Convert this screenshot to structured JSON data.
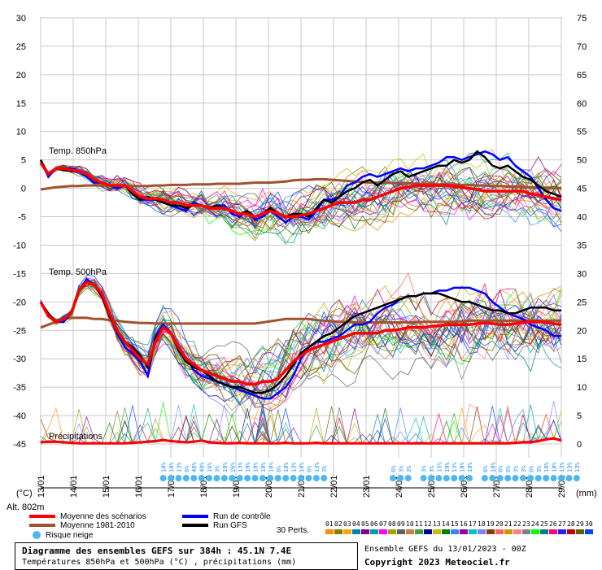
{
  "chart_data": {
    "type": "line",
    "x_dates": [
      "13/01",
      "14/01",
      "15/01",
      "16/01",
      "17/01",
      "18/01",
      "19/01",
      "20/01",
      "21/01",
      "22/01",
      "23/01",
      "24/01",
      "25/01",
      "26/01",
      "27/01",
      "28/01",
      "29/01"
    ],
    "x_step_hours": 6,
    "left_axis": {
      "unit_label": "(°C)",
      "ticks": [
        30,
        25,
        20,
        15,
        10,
        5,
        0,
        -5,
        -10,
        -15,
        -20,
        -25,
        -30,
        -35,
        -40,
        -45
      ],
      "range": [
        -45,
        30
      ]
    },
    "right_axis": {
      "unit_label": "(mm)",
      "ticks": [
        75,
        70,
        65,
        60,
        55,
        50,
        45,
        40,
        35,
        30,
        25,
        20,
        15,
        10,
        5,
        0
      ],
      "range": [
        0,
        75
      ]
    },
    "panels": {
      "t850": {
        "label": "Temp. 850hPa"
      },
      "t500": {
        "label": "Temp. 500hPa"
      },
      "precip": {
        "label": "Précipitations"
      }
    },
    "series": {
      "t850_mean": {
        "name": "Moyenne des scénarios",
        "color": "#ff0000",
        "values": [
          4.5,
          2.5,
          3.5,
          3.5,
          3.2,
          3.0,
          2.5,
          1.5,
          1.0,
          0.5,
          0.5,
          0.5,
          -0.5,
          -1.5,
          -1.8,
          -1.8,
          -2.0,
          -2.5,
          -2.5,
          -3.0,
          -3.0,
          -3.0,
          -3.5,
          -3.5,
          -3.5,
          -4.0,
          -4.5,
          -4.5,
          -5.0,
          -4.5,
          -4.0,
          -4.5,
          -5.0,
          -5.0,
          -4.8,
          -4.5,
          -4.0,
          -3.5,
          -3.0,
          -2.5,
          -2.5,
          -2.5,
          -2.0,
          -2.0,
          -1.5,
          -1.0,
          -0.5,
          0.0,
          0.2,
          0.5,
          0.5,
          0.5,
          0.5,
          0.5,
          0.3,
          0.2,
          0.0,
          -0.2,
          -0.5,
          -0.5,
          -0.5,
          -0.5,
          -0.5,
          -0.5,
          -1.0,
          -1.2,
          -1.5,
          -1.8,
          -2.0
        ]
      },
      "t850_clim": {
        "name": "Moyenne 1981-2010",
        "color": "#a0522d",
        "values": [
          -0.2,
          0.0,
          0.2,
          0.3,
          0.4,
          0.4,
          0.5,
          0.5,
          0.5,
          0.5,
          0.5,
          0.5,
          0.4,
          0.4,
          0.4,
          0.5,
          0.5,
          0.6,
          0.6,
          0.6,
          0.7,
          0.7,
          0.7,
          0.8,
          0.8,
          0.8,
          0.8,
          0.9,
          1.0,
          1.0,
          1.0,
          1.1,
          1.2,
          1.4,
          1.5,
          1.5,
          1.6,
          1.6,
          1.5,
          1.4,
          1.3,
          1.2,
          1.1,
          1.0,
          1.0,
          1.0,
          0.9,
          0.9,
          0.9,
          0.8,
          0.8,
          0.8,
          0.7,
          0.7,
          0.7,
          0.6,
          0.6,
          0.5,
          0.5,
          0.4,
          0.4,
          0.3,
          0.3,
          0.2,
          0.2,
          0.1,
          0.1,
          0.0,
          0.0
        ]
      },
      "t850_control": {
        "name": "Run de contrôle",
        "color": "#0000ff",
        "values": [
          5.0,
          2.0,
          3.5,
          3.5,
          3.5,
          3.0,
          2.0,
          1.0,
          1.0,
          0.5,
          0.0,
          0.5,
          -1.0,
          -2.0,
          -2.0,
          -2.0,
          -2.5,
          -3.0,
          -3.5,
          -4.0,
          -2.5,
          -3.0,
          -3.5,
          -3.0,
          -3.0,
          -4.5,
          -5.0,
          -4.0,
          -5.5,
          -5.0,
          -4.0,
          -5.0,
          -6.0,
          -5.0,
          -5.0,
          -5.5,
          -4.0,
          -2.0,
          -2.0,
          -1.5,
          0.5,
          1.0,
          2.0,
          2.5,
          2.0,
          2.5,
          3.0,
          3.5,
          3.0,
          3.5,
          3.5,
          4.0,
          4.5,
          5.5,
          5.5,
          5.0,
          5.5,
          6.0,
          6.5,
          6.0,
          5.0,
          5.5,
          4.0,
          3.0,
          2.0,
          0.0,
          -2.0,
          -3.5,
          -4.0
        ]
      },
      "t850_gfs": {
        "name": "Run GFS",
        "color": "#000000",
        "values": [
          5.0,
          2.5,
          3.5,
          3.2,
          3.0,
          3.0,
          2.5,
          1.5,
          1.0,
          0.5,
          0.5,
          0.5,
          -1.0,
          -2.0,
          -1.5,
          -2.0,
          -2.5,
          -3.0,
          -3.0,
          -3.5,
          -3.0,
          -3.0,
          -3.5,
          -3.0,
          -3.5,
          -4.0,
          -4.5,
          -4.0,
          -5.0,
          -4.5,
          -3.5,
          -4.5,
          -5.0,
          -4.5,
          -4.5,
          -5.0,
          -3.5,
          -2.0,
          -2.5,
          -1.5,
          -0.5,
          0.0,
          1.0,
          1.5,
          0.5,
          1.5,
          2.5,
          3.0,
          2.0,
          2.5,
          3.0,
          3.5,
          4.0,
          4.0,
          5.0,
          4.5,
          5.0,
          6.5,
          5.5,
          4.0,
          3.5,
          4.0,
          3.0,
          2.0,
          1.5,
          0.5,
          -0.5,
          -1.0,
          -1.5
        ]
      },
      "t500_mean": {
        "name": "Moyenne des scénarios",
        "color": "#ff0000",
        "values": [
          -20.0,
          -22.5,
          -23.5,
          -23.0,
          -22.0,
          -18.0,
          -16.5,
          -17.0,
          -18.5,
          -22.0,
          -25.0,
          -27.0,
          -28.5,
          -30.0,
          -31.0,
          -27.0,
          -24.5,
          -25.5,
          -28.0,
          -30.0,
          -31.0,
          -32.0,
          -32.5,
          -33.0,
          -33.5,
          -34.0,
          -34.0,
          -34.5,
          -34.5,
          -34.0,
          -34.0,
          -33.5,
          -32.0,
          -30.5,
          -29.5,
          -28.5,
          -28.0,
          -27.5,
          -27.0,
          -26.5,
          -26.0,
          -25.5,
          -25.5,
          -25.5,
          -25.5,
          -25.0,
          -25.0,
          -24.8,
          -24.5,
          -24.5,
          -24.5,
          -24.3,
          -24.2,
          -24.0,
          -24.0,
          -24.0,
          -24.0,
          -23.8,
          -23.7,
          -23.8,
          -24.0,
          -24.0,
          -23.8,
          -23.6,
          -23.5,
          -23.5,
          -23.6,
          -23.8,
          -24.0
        ]
      },
      "t500_clim": {
        "name": "Moyenne 1981-2010",
        "color": "#a0522d",
        "values": [
          -24.5,
          -24.0,
          -23.5,
          -23.0,
          -22.8,
          -22.8,
          -22.8,
          -23.0,
          -23.0,
          -23.2,
          -23.3,
          -23.5,
          -23.6,
          -23.7,
          -23.7,
          -23.8,
          -23.8,
          -23.8,
          -23.8,
          -23.8,
          -23.8,
          -23.8,
          -23.8,
          -23.8,
          -23.8,
          -23.8,
          -23.8,
          -23.8,
          -23.8,
          -23.6,
          -23.4,
          -23.2,
          -23.0,
          -23.0,
          -23.0,
          -23.0,
          -23.2,
          -23.3,
          -23.4,
          -23.5,
          -23.5,
          -23.6,
          -23.6,
          -23.6,
          -23.6,
          -23.6,
          -23.6,
          -23.6,
          -23.6,
          -23.6,
          -23.5,
          -23.5,
          -23.5,
          -23.5,
          -23.5,
          -23.4,
          -23.3,
          -23.3,
          -23.3,
          -23.3,
          -23.3,
          -23.3,
          -23.3,
          -23.3,
          -23.3,
          -23.3,
          -23.3,
          -23.3,
          -23.3
        ]
      },
      "t500_control": {
        "name": "Run de contrôle",
        "color": "#0000ff",
        "values": [
          -20.0,
          -22.5,
          -23.5,
          -23.5,
          -22.0,
          -18.0,
          -16.0,
          -17.0,
          -18.5,
          -22.0,
          -25.5,
          -28.0,
          -29.0,
          -30.5,
          -33.0,
          -26.0,
          -24.0,
          -25.5,
          -28.0,
          -30.0,
          -32.0,
          -33.0,
          -33.5,
          -34.0,
          -34.5,
          -35.0,
          -35.5,
          -36.0,
          -36.5,
          -37.0,
          -37.0,
          -36.0,
          -35.0,
          -33.0,
          -30.0,
          -28.0,
          -27.0,
          -27.0,
          -26.5,
          -26.0,
          -25.0,
          -24.0,
          -24.0,
          -23.5,
          -22.0,
          -21.0,
          -20.5,
          -19.5,
          -19.0,
          -19.0,
          -18.5,
          -18.5,
          -18.0,
          -18.0,
          -17.5,
          -17.5,
          -17.5,
          -18.0,
          -18.5,
          -20.0,
          -21.0,
          -22.0,
          -22.5,
          -23.0,
          -24.0,
          -24.5,
          -25.0,
          -26.0,
          -26.0
        ]
      },
      "t500_gfs": {
        "name": "Run GFS",
        "color": "#000000",
        "values": [
          -20.0,
          -22.0,
          -23.5,
          -23.0,
          -22.0,
          -18.0,
          -16.5,
          -17.0,
          -19.0,
          -22.5,
          -25.0,
          -27.0,
          -28.0,
          -29.5,
          -31.5,
          -26.5,
          -24.5,
          -25.5,
          -28.5,
          -30.5,
          -31.5,
          -32.0,
          -33.0,
          -34.0,
          -34.5,
          -35.0,
          -35.0,
          -35.5,
          -36.0,
          -36.0,
          -35.5,
          -34.5,
          -33.0,
          -31.0,
          -29.0,
          -28.0,
          -27.0,
          -26.0,
          -25.5,
          -24.5,
          -23.5,
          -22.5,
          -22.0,
          -21.5,
          -21.0,
          -20.5,
          -20.0,
          -19.5,
          -19.0,
          -19.0,
          -18.5,
          -18.5,
          -18.5,
          -19.0,
          -19.5,
          -20.0,
          -20.0,
          -20.5,
          -21.0,
          -21.5,
          -21.5,
          -22.0,
          -22.0,
          -21.5,
          -21.0,
          -21.0,
          -21.0,
          -21.5,
          -21.5
        ]
      }
    },
    "precip_mean_mm": [
      0.3,
      0.4,
      0.4,
      0.3,
      0.2,
      0.1,
      0.1,
      0.1,
      0.1,
      0.1,
      0.1,
      0.1,
      0.2,
      0.3,
      0.4,
      0.5,
      0.7,
      0.5,
      0.4,
      0.3,
      0.4,
      0.6,
      0.3,
      0.2,
      0.1,
      0.1,
      0.2,
      0.1,
      0.1,
      0.1,
      0.1,
      0.1,
      0.2,
      0.1,
      0.1,
      0.1,
      0.2,
      0.1,
      0.1,
      0.1,
      0.1,
      0.1,
      0.1,
      0.1,
      0.1,
      0.1,
      0.1,
      0.1,
      0.1,
      0.1,
      0.1,
      0.1,
      0.1,
      0.1,
      0.1,
      0.1,
      0.1,
      0.1,
      0.1,
      0.1,
      0.1,
      0.1,
      0.2,
      0.3,
      0.3,
      0.5,
      0.8,
      1.0,
      0.6
    ],
    "snow_risk": [
      {
        "i": 16,
        "label": "10%"
      },
      {
        "i": 17,
        "label": "10%"
      },
      {
        "i": 18,
        "label": "13%"
      },
      {
        "i": 19,
        "label": "6%"
      },
      {
        "i": 20,
        "label": "48%"
      },
      {
        "i": 21,
        "label": "48%"
      },
      {
        "i": 22,
        "label": "16%"
      },
      {
        "i": 23,
        "label": "3%"
      },
      {
        "i": 24,
        "label": "10%"
      },
      {
        "i": 25,
        "label": "26%"
      },
      {
        "i": 26,
        "label": "13%"
      },
      {
        "i": 27,
        "label": "10%"
      },
      {
        "i": 28,
        "label": "10%"
      },
      {
        "i": 29,
        "label": "10%"
      },
      {
        "i": 30,
        "label": "10%"
      },
      {
        "i": 31,
        "label": "6%"
      },
      {
        "i": 32,
        "label": "10%"
      },
      {
        "i": 33,
        "label": "13%"
      },
      {
        "i": 34,
        "label": "10%"
      },
      {
        "i": 35,
        "label": "6%"
      },
      {
        "i": 36,
        "label": "13%"
      },
      {
        "i": 37,
        "label": "3%"
      },
      {
        "i": 46,
        "label": "6%"
      },
      {
        "i": 47,
        "label": "3%"
      },
      {
        "i": 48,
        "label": "3%"
      },
      {
        "i": 50,
        "label": "3%"
      },
      {
        "i": 51,
        "label": "3%"
      },
      {
        "i": 52,
        "label": "13%"
      },
      {
        "i": 53,
        "label": "10%"
      },
      {
        "i": 54,
        "label": "13%"
      },
      {
        "i": 55,
        "label": "10%"
      },
      {
        "i": 56,
        "label": "10%"
      },
      {
        "i": 58,
        "label": "6%"
      },
      {
        "i": 59,
        "label": "10%"
      },
      {
        "i": 60,
        "label": "6%"
      },
      {
        "i": 61,
        "label": "6%"
      },
      {
        "i": 62,
        "label": "3%"
      },
      {
        "i": 63,
        "label": "3%"
      },
      {
        "i": 64,
        "label": "6%"
      },
      {
        "i": 65,
        "label": "3%"
      },
      {
        "i": 66,
        "label": "10%"
      },
      {
        "i": 67,
        "label": "10%"
      },
      {
        "i": 68,
        "label": "13%"
      },
      {
        "i": 69,
        "label": "13%"
      },
      {
        "i": 70,
        "label": "13%"
      }
    ],
    "members": [
      "01",
      "02",
      "03",
      "04",
      "05",
      "06",
      "07",
      "08",
      "09",
      "10",
      "11",
      "12",
      "13",
      "14",
      "15",
      "16",
      "17",
      "18",
      "19",
      "20",
      "21",
      "22",
      "23",
      "24",
      "25",
      "26",
      "27",
      "28",
      "29",
      "30"
    ],
    "member_colors": [
      "#ff8c00",
      "#808000",
      "#ffa500",
      "#0080c0",
      "#800080",
      "#00a0a0",
      "#ff00ff",
      "#a0a000",
      "#606060",
      "#c08040",
      "#40a040",
      "#0000a0",
      "#c0c000",
      "#008000",
      "#4080ff",
      "#a000a0",
      "#00c0c0",
      "#8080ff",
      "#804000",
      "#ff6060",
      "#c0a000",
      "#ff8080",
      "#808080",
      "#00ff00",
      "#008080",
      "#ff0080",
      "#2020ff",
      "#c00000",
      "#606000",
      "#0040ff"
    ]
  },
  "labels": {
    "left_unit": "(°C)",
    "right_unit": "(mm)",
    "alt": "Alt. 802m",
    "legend_mean": "Moyenne des scénarios",
    "legend_clim": "Moyenne 1981-2010",
    "legend_snow": "Risque neige",
    "legend_control": "Run de contrôle",
    "legend_gfs": "Run GFS",
    "perts": "30 Perts.",
    "info_title": "Diagramme des ensembles GEFS sur 384h : 45.1N 7.4E",
    "info_sub": "Températures 850hPa et 500hPa (°C) , précipitations (mm)",
    "run_info": "Ensemble GEFS du 13/01/2023 - 00Z",
    "copyright": "Copyright 2023 Meteociel.fr"
  },
  "colors": {
    "mean": "#ff0000",
    "clim": "#a0522d",
    "control": "#0000ff",
    "gfs": "#000000",
    "snow": "#4fb7f0",
    "grid": "#c8c8c8"
  }
}
